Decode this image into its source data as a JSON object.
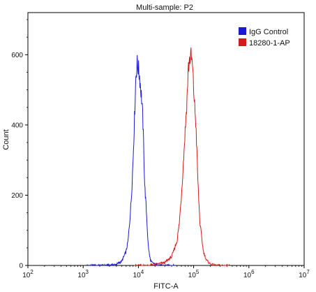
{
  "chart_data": {
    "type": "line",
    "title": "Multi-sample: P2",
    "xlabel": "FITC-A",
    "ylabel": "Count",
    "x_scale": "log",
    "xlim": [
      100,
      10000000
    ],
    "ylim": [
      0,
      720
    ],
    "x_ticks": [
      {
        "value": 100,
        "base": "10",
        "exp": "2"
      },
      {
        "value": 1000,
        "base": "10",
        "exp": "3"
      },
      {
        "value": 10000,
        "base": "10",
        "exp": "4"
      },
      {
        "value": 100000,
        "base": "10",
        "exp": "5"
      },
      {
        "value": 1000000,
        "base": "10",
        "exp": "6"
      },
      {
        "value": 10000000,
        "base": "10",
        "exp": "7"
      }
    ],
    "y_ticks": [
      0,
      200,
      400,
      600
    ],
    "grid": false,
    "legend_position": "top-right",
    "series": [
      {
        "name": "IgG Control",
        "color": "#1a1ad4",
        "points": [
          [
            2000,
            0
          ],
          [
            3000,
            1
          ],
          [
            4000,
            3
          ],
          [
            5000,
            12
          ],
          [
            6000,
            40
          ],
          [
            6500,
            70
          ],
          [
            7000,
            130
          ],
          [
            7500,
            200
          ],
          [
            8000,
            300
          ],
          [
            8500,
            420
          ],
          [
            9000,
            540
          ],
          [
            9500,
            575
          ],
          [
            10000,
            560
          ],
          [
            10500,
            540
          ],
          [
            11000,
            505
          ],
          [
            11500,
            470
          ],
          [
            12000,
            420
          ],
          [
            12500,
            330
          ],
          [
            13000,
            230
          ],
          [
            14000,
            150
          ],
          [
            15000,
            60
          ],
          [
            16000,
            25
          ],
          [
            17000,
            10
          ],
          [
            20000,
            3
          ],
          [
            25000,
            0
          ]
        ]
      },
      {
        "name": "18280-1-AP",
        "color": "#d41a1a",
        "points": [
          [
            15000,
            0
          ],
          [
            20000,
            3
          ],
          [
            30000,
            8
          ],
          [
            40000,
            25
          ],
          [
            50000,
            70
          ],
          [
            55000,
            120
          ],
          [
            60000,
            200
          ],
          [
            65000,
            290
          ],
          [
            70000,
            380
          ],
          [
            75000,
            460
          ],
          [
            80000,
            560
          ],
          [
            85000,
            590
          ],
          [
            90000,
            595
          ],
          [
            95000,
            570
          ],
          [
            100000,
            500
          ],
          [
            110000,
            400
          ],
          [
            120000,
            230
          ],
          [
            130000,
            120
          ],
          [
            150000,
            40
          ],
          [
            170000,
            15
          ],
          [
            200000,
            4
          ],
          [
            250000,
            0
          ]
        ]
      }
    ]
  }
}
